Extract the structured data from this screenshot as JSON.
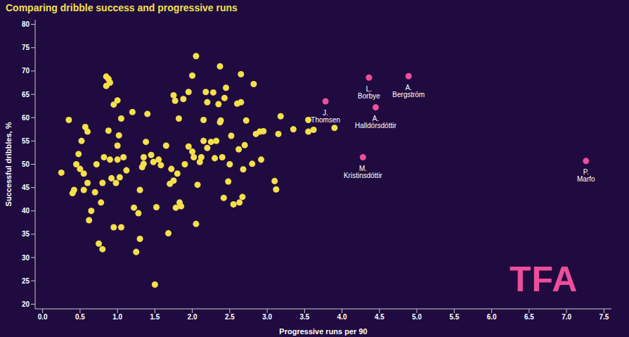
{
  "chart_data": {
    "type": "scatter",
    "title": "Comparing dribble success and progressive runs",
    "x_label": "Progressive runs per 90",
    "y_label": "Successful dribbles, %",
    "annotations": [
      "TFA"
    ],
    "xlim": [
      -0.1,
      7.6
    ],
    "xticks": [
      {
        "value": 0,
        "label": "0.0"
      },
      {
        "value": 0.5,
        "label": "0.5"
      },
      {
        "value": 1,
        "label": "1.0"
      },
      {
        "value": 1.5,
        "label": "1.5"
      },
      {
        "value": 2,
        "label": "2.0"
      },
      {
        "value": 2.5,
        "label": "2.5"
      },
      {
        "value": 3,
        "label": "3.0"
      },
      {
        "value": 3.5,
        "label": "3.5"
      },
      {
        "value": 4,
        "label": "4.0"
      },
      {
        "value": 4.5,
        "label": "4.5"
      },
      {
        "value": 5,
        "label": "5.0"
      },
      {
        "value": 5.5,
        "label": "5.5"
      },
      {
        "value": 6,
        "label": "6.0"
      },
      {
        "value": 6.5,
        "label": "6.5"
      },
      {
        "value": 7,
        "label": "7.0"
      },
      {
        "value": 7.5,
        "label": "7.5"
      }
    ],
    "ylim": [
      19,
      81
    ],
    "yticks": [
      20,
      25,
      30,
      35,
      40,
      45,
      50,
      55,
      60,
      65,
      70,
      75,
      80
    ],
    "grid": false,
    "series": [
      {
        "color": "#f5e04a",
        "marker": "circle",
        "x": [
          0.25,
          0.35,
          0.4,
          0.42,
          0.45,
          0.48,
          0.5,
          0.52,
          0.55,
          0.55,
          0.57,
          0.6,
          0.6,
          0.62,
          0.65,
          0.7,
          0.72,
          0.75,
          0.78,
          0.8,
          0.8,
          0.82,
          0.85,
          0.88,
          0.85,
          0.9,
          0.88,
          0.9,
          0.92,
          0.95,
          0.95,
          0.98,
          1.0,
          1.0,
          1.0,
          1.02,
          1.03,
          1.05,
          1.05,
          1.08,
          1.12,
          1.2,
          1.22,
          1.25,
          1.28,
          1.3,
          1.3,
          1.33,
          1.35,
          1.35,
          1.38,
          1.4,
          1.45,
          1.48,
          1.5,
          1.52,
          1.55,
          1.58,
          1.65,
          1.68,
          1.7,
          1.72,
          1.75,
          1.75,
          1.77,
          1.78,
          1.8,
          1.82,
          1.83,
          1.85,
          1.88,
          1.9,
          1.95,
          1.95,
          2.0,
          2.0,
          2.02,
          2.05,
          2.05,
          2.07,
          2.1,
          2.12,
          2.15,
          2.15,
          2.18,
          2.2,
          2.2,
          2.25,
          2.28,
          2.3,
          2.32,
          2.35,
          2.37,
          2.37,
          2.38,
          2.4,
          2.42,
          2.43,
          2.45,
          2.48,
          2.5,
          2.52,
          2.55,
          2.6,
          2.62,
          2.63,
          2.65,
          2.65,
          2.67,
          2.68,
          2.7,
          2.72,
          2.8,
          2.82,
          2.85,
          2.9,
          2.92,
          2.95,
          3.1,
          3.12,
          3.15,
          3.18,
          3.35,
          3.55,
          3.55,
          3.62,
          3.9
        ],
        "values": [
          48.2,
          59.5,
          43.8,
          44.5,
          50,
          52.2,
          49,
          55,
          44.5,
          48,
          58,
          57,
          46,
          38,
          40,
          44,
          50,
          33,
          41.8,
          31.8,
          46,
          51.5,
          68.8,
          68.3,
          66.8,
          67.5,
          57.2,
          51,
          47,
          36.5,
          62.8,
          46,
          63.7,
          54,
          51,
          56.2,
          47.2,
          36.5,
          59.8,
          51.5,
          48.7,
          61.2,
          40.7,
          31.2,
          39.5,
          44.5,
          34,
          49.4,
          51.5,
          50.1,
          54.8,
          60.8,
          52,
          50.5,
          24.2,
          40.8,
          51,
          49.8,
          54,
          35.2,
          45.8,
          49,
          64.8,
          46.5,
          63.6,
          40.7,
          48,
          59.8,
          41.8,
          41,
          64,
          50,
          65.5,
          53.8,
          69,
          52.7,
          51.5,
          73.2,
          37.2,
          45.6,
          50.5,
          51.5,
          59.5,
          55,
          65.5,
          53.5,
          63.3,
          54.8,
          65.4,
          51.3,
          55,
          62.9,
          59,
          71,
          59.4,
          51.5,
          42.8,
          64.2,
          66.4,
          46.3,
          50,
          56.1,
          41.4,
          63,
          53.2,
          41.8,
          69.3,
          63.3,
          43,
          48.9,
          54.1,
          59.4,
          50.1,
          67.2,
          56.5,
          57,
          51,
          57.1,
          46.4,
          44.6,
          56.5,
          60.3,
          57.5,
          59.5,
          57,
          57.4,
          57.8
        ]
      },
      {
        "color": "#ee4d9a",
        "marker": "circle",
        "x": [
          4.36,
          4.89,
          3.78,
          4.45,
          4.28,
          7.26
        ],
        "values": [
          68.6,
          68.9,
          63.5,
          62.2,
          51.5,
          50.7
        ],
        "labels": [
          "L. Borbye",
          "A. Bergström",
          "J. Thomsen",
          "A. Halldórsdóttir",
          "M. Kristinsdóttir",
          "P. Marfo"
        ]
      }
    ]
  }
}
